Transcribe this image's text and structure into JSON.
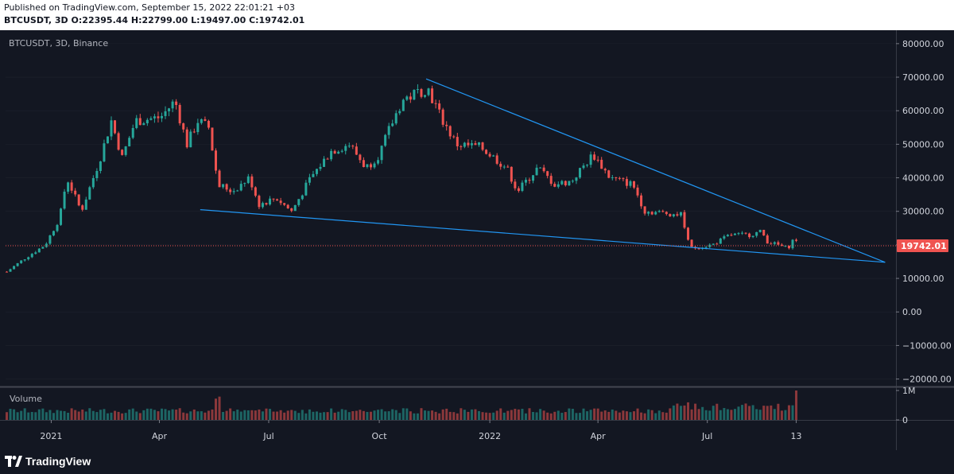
{
  "header": {
    "published": "Published on TradingView.com, September 15, 2022 22:01:21 +03",
    "symbol": "BTCUSDT",
    "interval": "3D",
    "ohlc": "O:22395.44 H:22799.00 L:19497.00 C:19742.01"
  },
  "chart_label": "BTCUSDT, 3D, Binance",
  "volume_label": "Volume",
  "footer": {
    "brand": "TradingView"
  },
  "colors": {
    "background": "#131722",
    "up": "#26a69a",
    "down": "#ef5350",
    "trendline": "#2196f3",
    "price_line": "#ef5350",
    "axis_text": "#d1d4dc",
    "grid": "#2a2e39"
  },
  "chart_data": {
    "type": "candlestick",
    "symbol": "BTCUSDT",
    "interval": "3D",
    "exchange": "Binance",
    "y_axis": {
      "range": [
        -22000,
        84000
      ],
      "ticks": [
        80000,
        70000,
        60000,
        50000,
        40000,
        30000,
        20000,
        10000,
        0,
        -10000,
        -20000
      ],
      "tick_labels": [
        "80000.00",
        "70000.00",
        "60000.00",
        "50000.00",
        "40000.00",
        "30000.00",
        "20000.00",
        "10000.00",
        "0.00",
        "−10000.00",
        "−20000.00"
      ]
    },
    "x_axis": {
      "range": [
        "2020-11-24",
        "2022-12-05"
      ],
      "ticks": [
        {
          "date": "2021-01-01",
          "label": "2021"
        },
        {
          "date": "2021-04-01",
          "label": "Apr"
        },
        {
          "date": "2021-07-01",
          "label": "Jul"
        },
        {
          "date": "2021-10-01",
          "label": "Oct"
        },
        {
          "date": "2022-01-01",
          "label": "2022"
        },
        {
          "date": "2022-04-01",
          "label": "Apr"
        },
        {
          "date": "2022-07-01",
          "label": "Jul"
        },
        {
          "date": "2022-09-13",
          "label": "13"
        }
      ]
    },
    "last_price": 19742.01,
    "last_price_label": "19742.01",
    "close_path": [
      [
        "2020-11-25",
        12000
      ],
      [
        "2020-12-10",
        16000
      ],
      [
        "2020-12-27",
        20000
      ],
      [
        "2021-01-08",
        28000
      ],
      [
        "2021-01-14",
        40000
      ],
      [
        "2021-01-26",
        30000
      ],
      [
        "2021-02-10",
        45000
      ],
      [
        "2021-02-20",
        57000
      ],
      [
        "2021-03-01",
        46000
      ],
      [
        "2021-03-12",
        57000
      ],
      [
        "2021-04-02",
        58000
      ],
      [
        "2021-04-14",
        63000
      ],
      [
        "2021-04-24",
        50000
      ],
      [
        "2021-05-03",
        57000
      ],
      [
        "2021-05-12",
        55000
      ],
      [
        "2021-05-20",
        38000
      ],
      [
        "2021-06-01",
        36000
      ],
      [
        "2021-06-15",
        40000
      ],
      [
        "2021-06-23",
        32000
      ],
      [
        "2021-07-07",
        34000
      ],
      [
        "2021-07-20",
        30000
      ],
      [
        "2021-08-05",
        40000
      ],
      [
        "2021-08-22",
        48000
      ],
      [
        "2021-09-06",
        50000
      ],
      [
        "2021-09-20",
        43000
      ],
      [
        "2021-10-01",
        47000
      ],
      [
        "2021-10-10",
        55000
      ],
      [
        "2021-10-20",
        63000
      ],
      [
        "2021-11-10",
        67000
      ],
      [
        "2021-11-20",
        59000
      ],
      [
        "2021-12-04",
        50000
      ],
      [
        "2021-12-25",
        49000
      ],
      [
        "2022-01-15",
        43000
      ],
      [
        "2022-01-24",
        36000
      ],
      [
        "2022-02-10",
        43000
      ],
      [
        "2022-02-24",
        38000
      ],
      [
        "2022-03-10",
        39000
      ],
      [
        "2022-03-28",
        47000
      ],
      [
        "2022-04-11",
        40000
      ],
      [
        "2022-04-30",
        38000
      ],
      [
        "2022-05-10",
        30000
      ],
      [
        "2022-05-26",
        29500
      ],
      [
        "2022-06-10",
        29000
      ],
      [
        "2022-06-15",
        21000
      ],
      [
        "2022-06-18",
        19000
      ],
      [
        "2022-07-05",
        20000
      ],
      [
        "2022-07-20",
        23000
      ],
      [
        "2022-08-05",
        23000
      ],
      [
        "2022-08-15",
        24000
      ],
      [
        "2022-08-20",
        21000
      ],
      [
        "2022-09-06",
        19000
      ],
      [
        "2022-09-12",
        22400
      ],
      [
        "2022-09-15",
        19742
      ]
    ],
    "annotations": [
      {
        "type": "trendline",
        "label": "upper",
        "points": [
          [
            "2021-11-09",
            69500
          ],
          [
            "2022-11-26",
            14800
          ]
        ]
      },
      {
        "type": "trendline",
        "label": "lower",
        "points": [
          [
            "2021-05-05",
            30500
          ],
          [
            "2022-11-26",
            14800
          ]
        ]
      },
      {
        "type": "horizontal_line",
        "label": "last price",
        "value": 19742.01
      }
    ],
    "volume": {
      "axis_ticks": [
        {
          "value": 1000000,
          "label": "1M"
        },
        {
          "value": 0,
          "label": "0"
        }
      ],
      "spikes": [
        [
          "2021-05-19",
          850000
        ],
        [
          "2022-06-15",
          550000
        ],
        [
          "2022-09-13",
          1000000
        ]
      ]
    }
  }
}
